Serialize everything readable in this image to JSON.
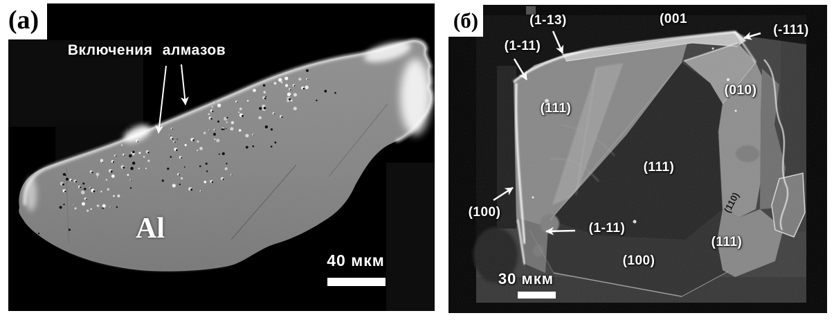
{
  "figure": {
    "description": "Two-panel SEM micrograph figure",
    "panel_a": {
      "tag": "(a)",
      "annotation": "Включения алмазов",
      "material_label": "Al",
      "scale_text": "40 мкм",
      "colors": {
        "background": "#000000",
        "particle": "#868686",
        "rim": "#ffffff"
      }
    },
    "panel_b": {
      "tag": "(б)",
      "scale_text": "30 мкм",
      "colors": {
        "background": "#000000",
        "sem_background": "#3e3e3e",
        "crystal_light": "#878787",
        "crystal_dark": "#232323"
      },
      "face_labels": {
        "f_1m13": "(1-13)",
        "f_001": "(001",
        "f_m111": "(-111)",
        "f_1m11_top": "(1-11)",
        "f_111_upper_left": "(111)",
        "f_010": "(010)",
        "f_111_center": "(111)",
        "f_100_left": "(100)",
        "f_1m11_bottom": "(1-11)",
        "f_100_bottom": "(100)",
        "f_111_bottom_right": "(111)",
        "f_110_rotated": "(110)"
      }
    }
  }
}
